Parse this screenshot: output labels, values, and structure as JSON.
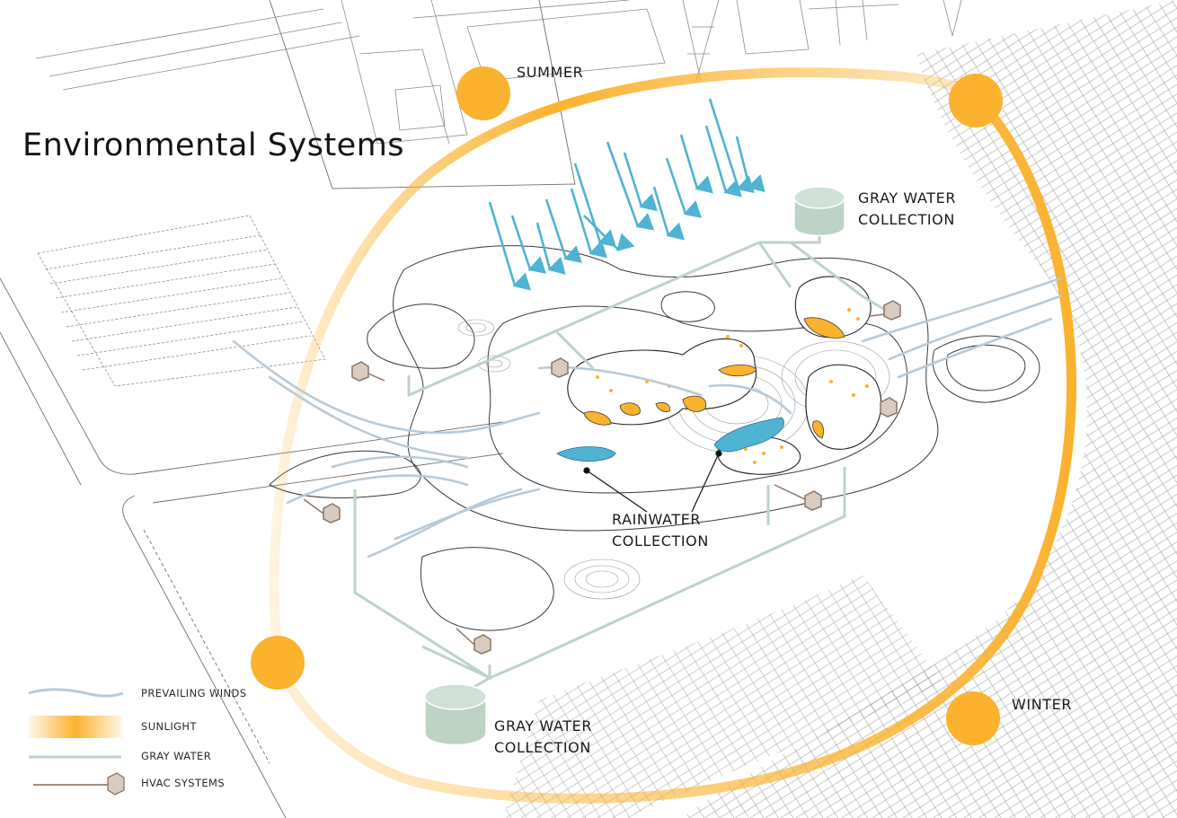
{
  "title": "Environmental Systems",
  "seasons": {
    "summer": "SUMMER",
    "winter": "WINTER"
  },
  "callouts": {
    "gray_water_top": [
      "GRAY WATER",
      "COLLECTION"
    ],
    "gray_water_bottom": [
      "GRAY WATER",
      "COLLECTION"
    ],
    "rainwater": [
      "RAINWATER",
      "COLLECTION"
    ]
  },
  "legend": [
    {
      "key": "winds",
      "label": "PREVAILING WINDS"
    },
    {
      "key": "sunlight",
      "label": "SUNLIGHT"
    },
    {
      "key": "graywater",
      "label": "GRAY WATER"
    },
    {
      "key": "hvac",
      "label": "HVAC SYSTEMS"
    }
  ],
  "colors": {
    "sun": "#fbb22e",
    "wind": "#b8cad8",
    "gray_water": "#bcd3c6",
    "rainwater": "#4fb3d3",
    "hvac": "#b39e8e",
    "linework": "#8a8a8a"
  }
}
